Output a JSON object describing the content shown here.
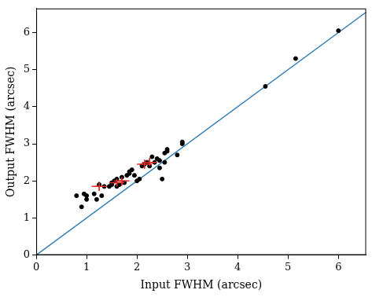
{
  "chart_data": {
    "type": "scatter",
    "x_label": "Input FWHM (arcsec)",
    "y_label": "Output FWHM (arcsec)",
    "xlim": [
      0,
      6.55
    ],
    "ylim": [
      0,
      6.65
    ],
    "xticks": [
      0,
      1,
      2,
      3,
      4,
      5,
      6
    ],
    "yticks": [
      0,
      1,
      2,
      3,
      4,
      5,
      6
    ],
    "grid": false,
    "series": [
      {
        "type": "line",
        "color": "#2e7db5",
        "line_style": "solid",
        "x": [
          0,
          6.55
        ],
        "values": [
          0,
          6.55
        ]
      },
      {
        "type": "scatter",
        "color": "#000000",
        "marker": "circle",
        "x": [
          0.8,
          0.9,
          0.95,
          1.0,
          1.0,
          1.15,
          1.2,
          1.25,
          1.3,
          1.35,
          1.45,
          1.5,
          1.5,
          1.55,
          1.6,
          1.6,
          1.65,
          1.7,
          1.75,
          1.8,
          1.85,
          1.85,
          1.9,
          1.95,
          2.0,
          2.05,
          2.1,
          2.15,
          2.2,
          2.25,
          2.3,
          2.35,
          2.4,
          2.45,
          2.45,
          2.5,
          2.55,
          2.55,
          2.6,
          2.6,
          2.8,
          2.9,
          2.9,
          4.55,
          5.15,
          6.0
        ],
        "values": [
          1.6,
          1.3,
          1.65,
          1.6,
          1.5,
          1.65,
          1.5,
          1.9,
          1.6,
          1.85,
          1.85,
          1.95,
          1.9,
          2.0,
          1.85,
          2.05,
          1.9,
          2.1,
          1.95,
          2.15,
          2.2,
          2.25,
          2.3,
          2.15,
          2.0,
          2.05,
          2.4,
          2.45,
          2.5,
          2.4,
          2.65,
          2.5,
          2.6,
          2.35,
          2.55,
          2.05,
          2.5,
          2.75,
          2.85,
          2.8,
          2.7,
          3.05,
          3.0,
          4.55,
          5.3,
          6.05
        ]
      },
      {
        "type": "scatter",
        "color": "#e0302c",
        "marker": "cross",
        "x": [
          1.25,
          1.6,
          1.7,
          2.15,
          2.25
        ],
        "values": [
          1.85,
          1.95,
          2.0,
          2.45,
          2.5
        ],
        "xerr": [
          0.15,
          0.15,
          0.15,
          0.15,
          0.15
        ],
        "yerr": [
          0.1,
          0.1,
          0.1,
          0.1,
          0.1
        ]
      }
    ]
  }
}
